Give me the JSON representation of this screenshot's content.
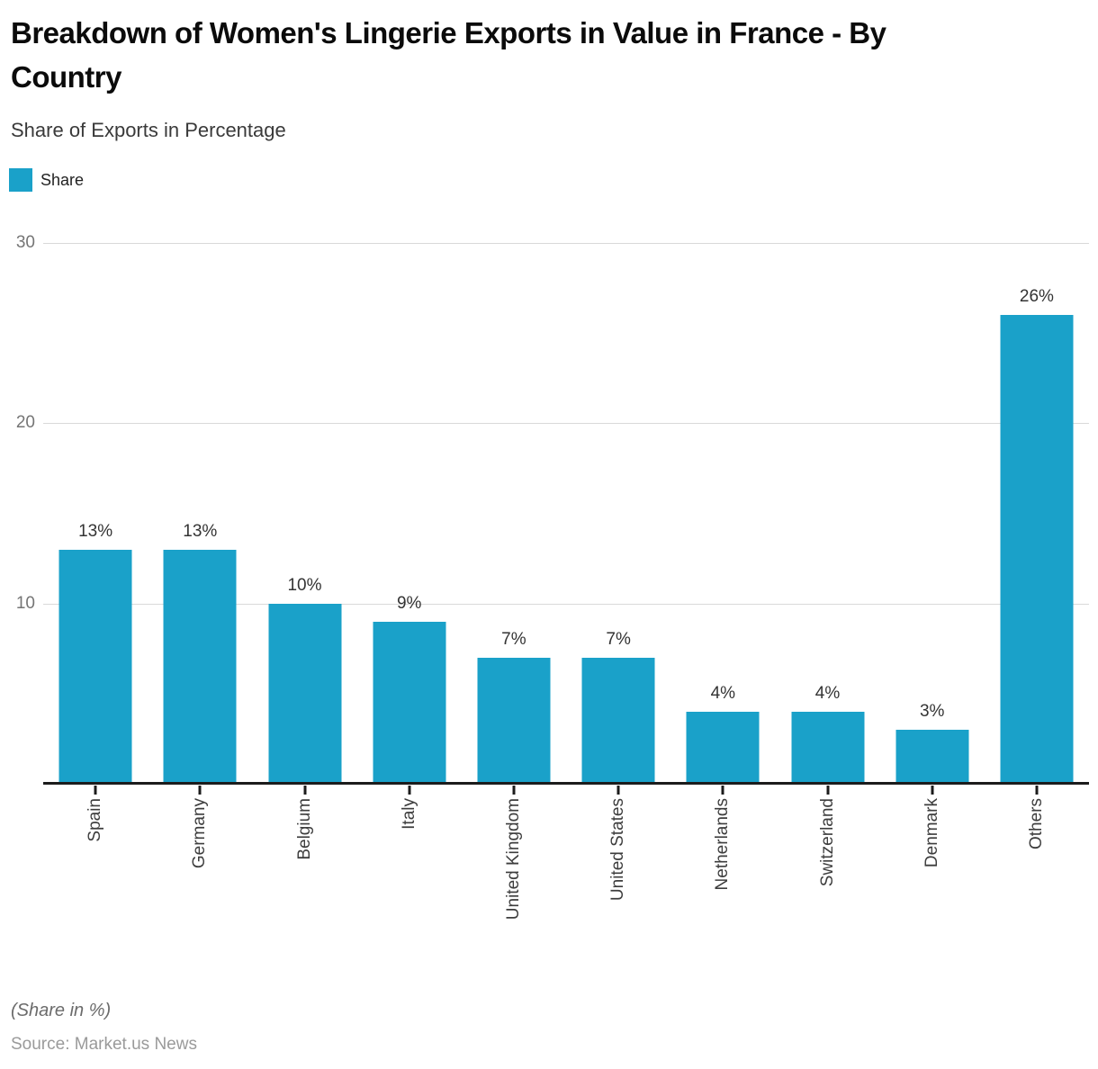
{
  "header": {
    "title": "Breakdown of Women's Lingerie Exports in Value in France - By Country",
    "subtitle": "Share of Exports in Percentage"
  },
  "legend": {
    "label": "Share"
  },
  "chart_data": {
    "type": "bar",
    "title": "Breakdown of Women's Lingerie Exports in Value in France - By Country",
    "subtitle": "Share of Exports in Percentage",
    "series_name": "Share",
    "categories": [
      "Spain",
      "Germany",
      "Belgium",
      "Italy",
      "United Kingdom",
      "United States",
      "Netherlands",
      "Switzerland",
      "Denmark",
      "Others"
    ],
    "values": [
      13,
      13,
      10,
      9,
      7,
      7,
      4,
      4,
      3,
      26
    ],
    "unit": "%",
    "xlabel": "",
    "ylabel": "",
    "ylim": [
      0,
      30
    ],
    "yticks": [
      10,
      20,
      30
    ],
    "grid": "horizontal",
    "legend_position": "top-left",
    "bar_color": "#1aa1c9",
    "gridline_color": "#d9d9d9",
    "axis_color": "#1c1c1c"
  },
  "footer": {
    "note": "(Share in %)",
    "source": "Source: Market.us News"
  }
}
